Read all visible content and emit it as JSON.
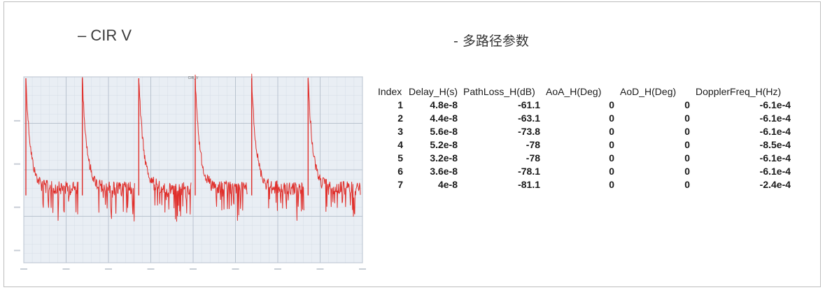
{
  "headings": {
    "left": "– CIR V",
    "right": "- 多路径参数"
  },
  "colors": {
    "trace": "#e0302c",
    "grid": "#b9c3cf",
    "plot_bg": "#e9eef4"
  },
  "chart_data": {
    "type": "line",
    "title": "CIR_V",
    "num_pulses": 6,
    "pulse_shape": "sharp peak followed by decaying noisy tail",
    "grid": true
  },
  "table": {
    "columns": [
      "Index",
      "Delay_H(s)",
      "PathLoss_H(dB)",
      "AoA_H(Deg)",
      "AoD_H(Deg)",
      "DopplerFreq_H(Hz)"
    ],
    "rows": [
      [
        "1",
        "4.8e-8",
        "-61.1",
        "0",
        "0",
        "-6.1e-4"
      ],
      [
        "2",
        "4.4e-8",
        "-63.1",
        "0",
        "0",
        "-6.1e-4"
      ],
      [
        "3",
        "5.6e-8",
        "-73.8",
        "0",
        "0",
        "-6.1e-4"
      ],
      [
        "4",
        "5.2e-8",
        "-78",
        "0",
        "0",
        "-8.5e-4"
      ],
      [
        "5",
        "3.2e-8",
        "-78",
        "0",
        "0",
        "-6.1e-4"
      ],
      [
        "6",
        "3.6e-8",
        "-78.1",
        "0",
        "0",
        "-6.1e-4"
      ],
      [
        "7",
        "4e-8",
        "-81.1",
        "0",
        "0",
        "-2.4e-4"
      ]
    ]
  }
}
